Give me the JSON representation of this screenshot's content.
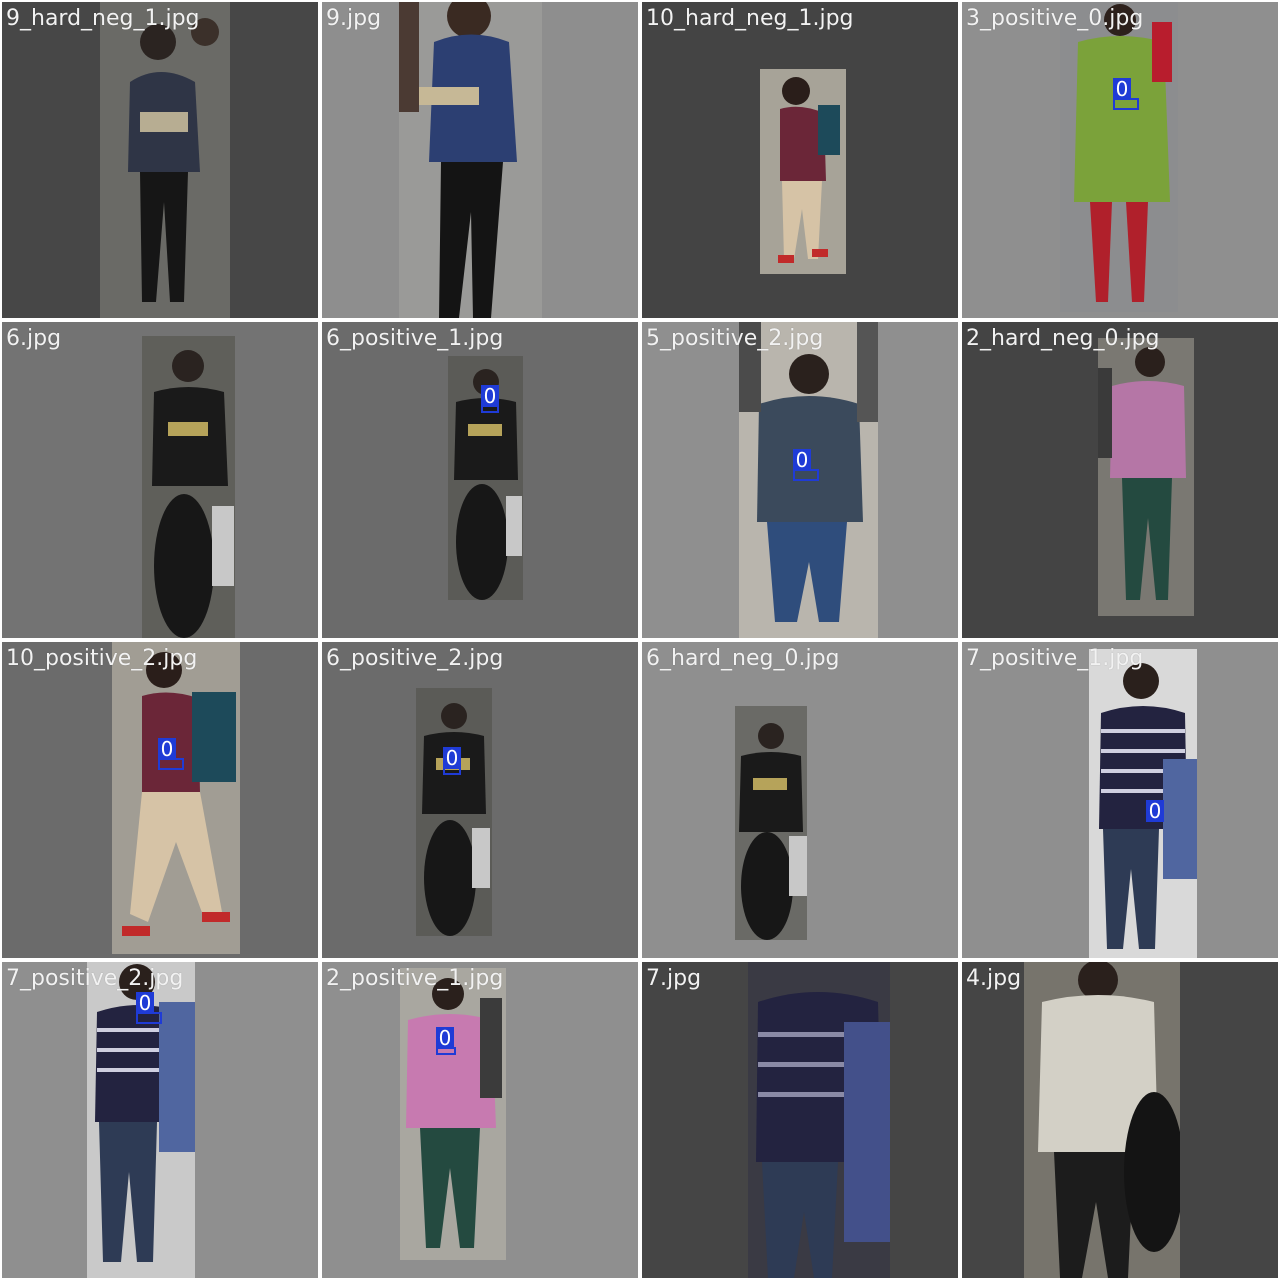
{
  "tiles": [
    {
      "label": "9_hard_neg_1.jpg",
      "detection": ""
    },
    {
      "label": "9.jpg",
      "detection": ""
    },
    {
      "label": "10_hard_neg_1.jpg",
      "detection": ""
    },
    {
      "label": "3_positive_0.jpg",
      "detection": "0"
    },
    {
      "label": "6.jpg",
      "detection": ""
    },
    {
      "label": "6_positive_1.jpg",
      "detection": "0"
    },
    {
      "label": "5_positive_2.jpg",
      "detection": "0"
    },
    {
      "label": "2_hard_neg_0.jpg",
      "detection": ""
    },
    {
      "label": "10_positive_2.jpg",
      "detection": "0"
    },
    {
      "label": "6_positive_2.jpg",
      "detection": "0"
    },
    {
      "label": "6_hard_neg_0.jpg",
      "detection": ""
    },
    {
      "label": "7_positive_1.jpg",
      "detection": "0"
    },
    {
      "label": "7_positive_2.jpg",
      "detection": "0"
    },
    {
      "label": "2_positive_1.jpg",
      "detection": "0"
    },
    {
      "label": "7.jpg",
      "detection": ""
    },
    {
      "label": "4.jpg",
      "detection": ""
    }
  ],
  "colors": {
    "detection": "#1f3bd6",
    "tile_dark": "#454545",
    "tile_mid": "#6e6e6e",
    "tile_light": "#8f8f8f"
  }
}
